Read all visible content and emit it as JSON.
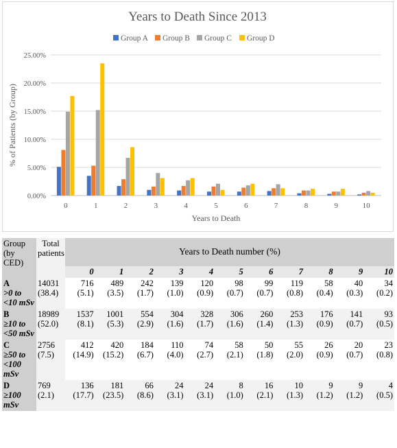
{
  "chart_data": {
    "type": "bar",
    "title": "Years to Death Since 2013",
    "xlabel": "Years to Death",
    "ylabel": "% of Patients (by Group)",
    "categories": [
      "0",
      "1",
      "2",
      "3",
      "4",
      "5",
      "6",
      "7",
      "8",
      "9",
      "10"
    ],
    "ylim": [
      0,
      25
    ],
    "yticks": [
      "0.00%",
      "5.00%",
      "10.00%",
      "15.00%",
      "20.00%",
      "25.00%"
    ],
    "grid": true,
    "legend": "top",
    "series": [
      {
        "name": "Group A",
        "color": "#4472c4",
        "values": [
          5.1,
          3.5,
          1.7,
          1.0,
          0.9,
          0.7,
          0.7,
          0.8,
          0.4,
          0.3,
          0.2
        ]
      },
      {
        "name": "Group B",
        "color": "#ed7d31",
        "values": [
          8.1,
          5.3,
          2.9,
          1.6,
          1.7,
          1.6,
          1.4,
          1.3,
          0.9,
          0.7,
          0.5
        ]
      },
      {
        "name": "Group C",
        "color": "#a5a5a5",
        "values": [
          14.9,
          15.2,
          6.7,
          4.0,
          2.7,
          2.1,
          1.8,
          2.0,
          0.9,
          0.7,
          0.8
        ]
      },
      {
        "name": "Group D",
        "color": "#ffc000",
        "values": [
          17.7,
          23.5,
          8.6,
          3.1,
          3.1,
          1.0,
          2.1,
          1.3,
          1.2,
          1.2,
          0.5
        ]
      }
    ]
  },
  "table": {
    "group_header": "Group (by CED)",
    "total_header": "Total patients",
    "title": "Years to Death number (%)",
    "years": [
      "0",
      "1",
      "2",
      "3",
      "4",
      "5",
      "6",
      "7",
      "8",
      "9",
      "10"
    ],
    "rows": [
      {
        "group": "A",
        "desc": ">0 to <10 mSv",
        "total": "14031 (38.4)",
        "cells": [
          [
            "716",
            "(5.1)"
          ],
          [
            "489",
            "(3.5)"
          ],
          [
            "242",
            "(1.7)"
          ],
          [
            "139",
            "(1.0)"
          ],
          [
            "120",
            "(0.9)"
          ],
          [
            "98",
            "(0.7)"
          ],
          [
            "99",
            "(0.7)"
          ],
          [
            "119",
            "(0.8)"
          ],
          [
            "58",
            "(0.4)"
          ],
          [
            "40",
            "(0.3)"
          ],
          [
            "34",
            "(0.2)"
          ]
        ]
      },
      {
        "group": "B",
        "desc": "≥10 to <50 mSv",
        "total": "18989 (52.0)",
        "cells": [
          [
            "1537",
            "(8.1)"
          ],
          [
            "1001",
            "(5.3)"
          ],
          [
            "554",
            "(2.9)"
          ],
          [
            "304",
            "(1.6)"
          ],
          [
            "328",
            "(1.7)"
          ],
          [
            "306",
            "(1.6)"
          ],
          [
            "260",
            "(1.4)"
          ],
          [
            "253",
            "(1.3)"
          ],
          [
            "176",
            "(0.9)"
          ],
          [
            "141",
            "(0.7)"
          ],
          [
            "93",
            "(0.5)"
          ]
        ]
      },
      {
        "group": "C",
        "desc": "≥50 to <100 mSv",
        "total": "2756 (7.5)",
        "cells": [
          [
            "412",
            "(14.9)"
          ],
          [
            "420",
            "(15.2)"
          ],
          [
            "184",
            "(6.7)"
          ],
          [
            "110",
            "(4.0)"
          ],
          [
            "74",
            "(2.7)"
          ],
          [
            "58",
            "(2.1)"
          ],
          [
            "50",
            "(1.8)"
          ],
          [
            "55",
            "(2.0)"
          ],
          [
            "26",
            "(0.9)"
          ],
          [
            "20",
            "(0.7)"
          ],
          [
            "23",
            "(0.8)"
          ]
        ]
      },
      {
        "group": "D",
        "desc": "≥100 mSv",
        "total": "769 (2.1)",
        "cells": [
          [
            "136",
            "(17.7)"
          ],
          [
            "181",
            "(23.5)"
          ],
          [
            "66",
            "(8.6)"
          ],
          [
            "24",
            "(3.1)"
          ],
          [
            "24",
            "(3.1)"
          ],
          [
            "8",
            "(1.0)"
          ],
          [
            "16",
            "(2.1)"
          ],
          [
            "10",
            "(1.3)"
          ],
          [
            "9",
            "(1.2)"
          ],
          [
            "9",
            "(1.2)"
          ],
          [
            "4",
            "(0.5)"
          ]
        ]
      }
    ]
  }
}
